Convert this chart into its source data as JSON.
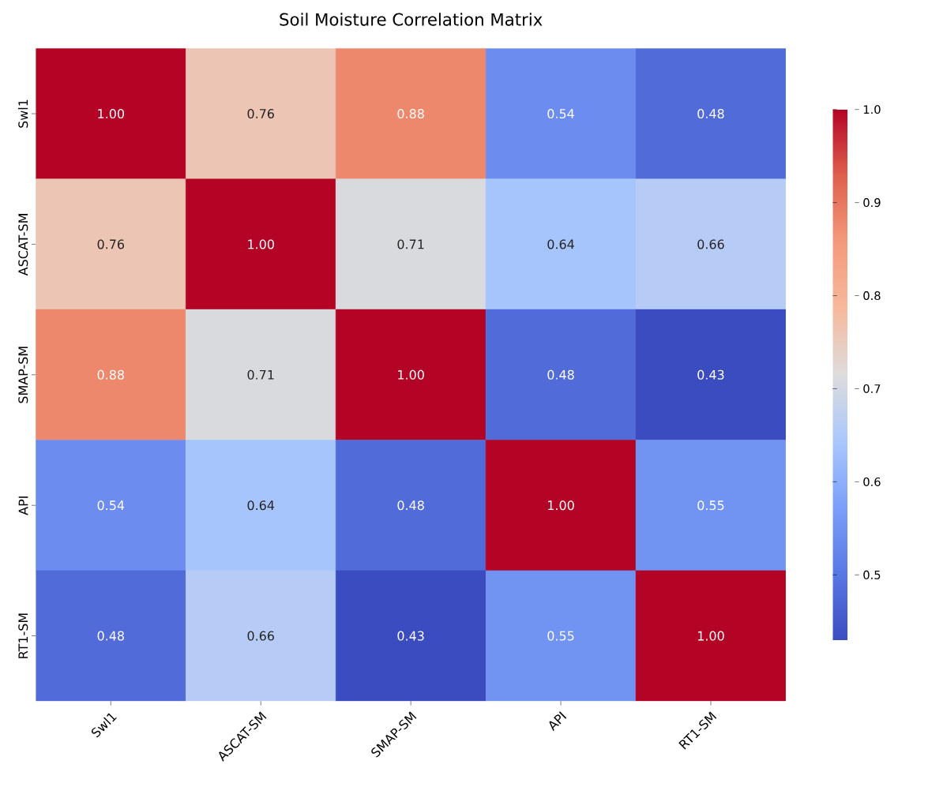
{
  "chart_data": {
    "type": "heatmap",
    "title": "Soil Moisture Correlation Matrix",
    "categories": [
      "Swl1",
      "ASCAT-SM",
      "SMAP-SM",
      "API",
      "RT1-SM"
    ],
    "y_categories": [
      "Swl1",
      "ASCAT-SM",
      "SMAP-SM",
      "API",
      "RT1-SM"
    ],
    "cells": [
      [
        1.0,
        0.76,
        0.88,
        0.54,
        0.48
      ],
      [
        0.76,
        1.0,
        0.71,
        0.64,
        0.66
      ],
      [
        0.88,
        0.71,
        1.0,
        0.48,
        0.43
      ],
      [
        0.54,
        0.64,
        0.48,
        1.0,
        0.55
      ],
      [
        0.48,
        0.66,
        0.43,
        0.55,
        1.0
      ]
    ],
    "cell_labels": [
      [
        "1.00",
        "0.76",
        "0.88",
        "0.54",
        "0.48"
      ],
      [
        "0.76",
        "1.00",
        "0.71",
        "0.64",
        "0.66"
      ],
      [
        "0.88",
        "0.71",
        "1.00",
        "0.48",
        "0.43"
      ],
      [
        "0.54",
        "0.64",
        "0.48",
        "1.00",
        "0.55"
      ],
      [
        "0.48",
        "0.66",
        "0.43",
        "0.55",
        "1.00"
      ]
    ],
    "clim": [
      0.43,
      1.0
    ],
    "cticks": [
      {
        "value": 0.5,
        "label": "0.5"
      },
      {
        "value": 0.6,
        "label": "0.6"
      },
      {
        "value": 0.7,
        "label": "0.7"
      },
      {
        "value": 0.8,
        "label": "0.8"
      },
      {
        "value": 0.9,
        "label": "0.9"
      },
      {
        "value": 1.0,
        "label": "1.0"
      }
    ]
  }
}
